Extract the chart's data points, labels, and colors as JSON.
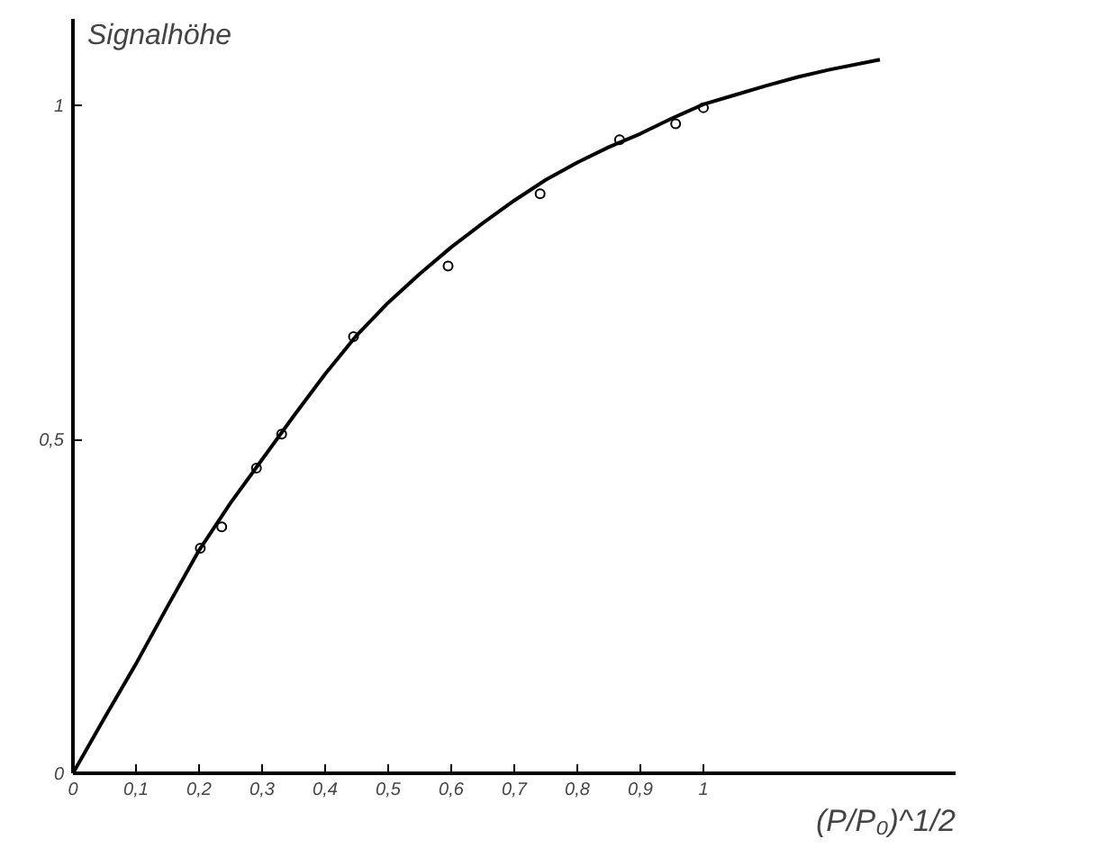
{
  "chart_data": {
    "type": "scatter",
    "xlabel": "(P/P₀)^1/2",
    "ylabel": "Signalhöhe",
    "series": [
      {
        "color": "#000000",
        "marker": "circle",
        "x": [
          0.202,
          0.236,
          0.291,
          0.331,
          0.445,
          0.595,
          0.741,
          0.867,
          0.956,
          1.0
        ],
        "values": [
          0.337,
          0.369,
          0.457,
          0.508,
          0.654,
          0.76,
          0.868,
          0.949,
          0.973,
          0.997
        ]
      },
      {
        "type": "line",
        "color": "#000000",
        "line_style": "solid",
        "x": [
          0,
          0.05,
          0.1,
          0.15,
          0.2,
          0.25,
          0.3,
          0.35,
          0.4,
          0.45,
          0.5,
          0.55,
          0.6,
          0.65,
          0.7,
          0.75,
          0.8,
          0.85,
          0.9,
          0.95,
          1.0,
          1.05,
          1.1,
          1.15,
          1.2,
          1.28
        ],
        "values": [
          0,
          0.083,
          0.164,
          0.25,
          0.334,
          0.405,
          0.47,
          0.535,
          0.598,
          0.656,
          0.705,
          0.748,
          0.788,
          0.824,
          0.858,
          0.889,
          0.915,
          0.938,
          0.958,
          0.981,
          1.002,
          1.016,
          1.03,
          1.043,
          1.054,
          1.069
        ]
      }
    ],
    "xlim": [
      0,
      1.4
    ],
    "ylim": [
      0,
      1.13
    ],
    "xticks": [
      0,
      {
        "value": 0.1,
        "label": "0,1"
      },
      {
        "value": 0.2,
        "label": "0,2"
      },
      {
        "value": 0.3,
        "label": "0,3"
      },
      {
        "value": 0.4,
        "label": "0,4"
      },
      {
        "value": 0.5,
        "label": "0,5"
      },
      {
        "value": 0.6,
        "label": "0,6"
      },
      {
        "value": 0.7,
        "label": "0,7"
      },
      {
        "value": 0.8,
        "label": "0,8"
      },
      {
        "value": 0.9,
        "label": "0,9"
      },
      1
    ],
    "yticks": [
      0,
      {
        "value": 0.5,
        "label": "0,5"
      },
      1
    ],
    "grid": false
  }
}
